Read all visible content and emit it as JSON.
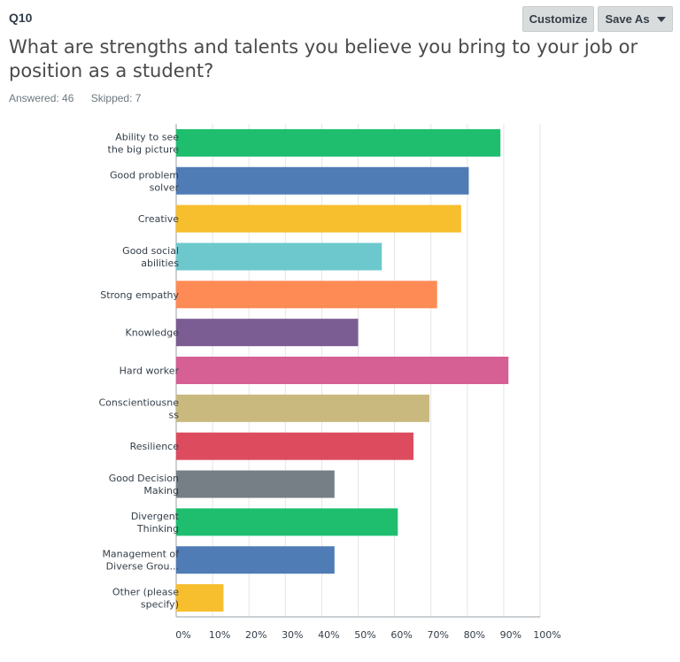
{
  "question": {
    "number": "Q10",
    "title": "What are strengths and talents you believe you bring to your job or position as a student?",
    "answered": "Answered: 46",
    "skipped": "Skipped: 7"
  },
  "toolbar": {
    "customize_label": "Customize",
    "save_as_label": "Save As",
    "save_as_icon": "caret-down-icon"
  },
  "chart_data": {
    "type": "bar",
    "orientation": "horizontal",
    "categories": [
      [
        "Ability to see",
        "the big picture"
      ],
      [
        "Good problem",
        "solver"
      ],
      [
        "Creative"
      ],
      [
        "Good social",
        "abilities"
      ],
      [
        "Strong empathy"
      ],
      [
        "Knowledge"
      ],
      [
        "Hard worker"
      ],
      [
        "Conscientiousne",
        "ss"
      ],
      [
        "Resilience"
      ],
      [
        "Good Decision",
        "Making"
      ],
      [
        "Divergent",
        "Thinking"
      ],
      [
        "Management of",
        "Diverse Grou..."
      ],
      [
        "Other (please",
        "specify)"
      ]
    ],
    "values": [
      89.1,
      80.4,
      78.3,
      56.5,
      71.7,
      50.0,
      91.3,
      69.6,
      65.2,
      43.5,
      60.9,
      43.5,
      13.0
    ],
    "colors": [
      "#1fbe6f",
      "#507cb6",
      "#f7be2e",
      "#6dc8cd",
      "#fe8b55",
      "#7b5d93",
      "#d65f93",
      "#c9b97e",
      "#dc4c5e",
      "#757f85",
      "#1fbe6f",
      "#507cb6",
      "#f7be2e"
    ],
    "xlim": [
      0,
      100
    ],
    "xticks": [
      "0%",
      "10%",
      "20%",
      "30%",
      "40%",
      "50%",
      "60%",
      "70%",
      "80%",
      "90%",
      "100%"
    ],
    "grid": true,
    "legend": "none",
    "title": "",
    "xlabel": "",
    "ylabel": ""
  }
}
